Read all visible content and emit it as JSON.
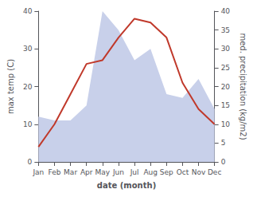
{
  "chart_data": {
    "type": "line",
    "categories": [
      "Jan",
      "Feb",
      "Mar",
      "Apr",
      "May",
      "Jun",
      "Jul",
      "Aug",
      "Sep",
      "Oct",
      "Nov",
      "Dec"
    ],
    "xlabel": "date (month)",
    "ylabel": "max temp (C)",
    "y2label": "med. precipitation (kg/m2)",
    "series": [
      {
        "type": "area",
        "axis": "y2",
        "color": "#c8d0ea",
        "values": [
          12,
          11,
          11,
          15,
          40,
          35,
          27,
          30,
          18,
          17,
          22,
          14
        ]
      },
      {
        "type": "line",
        "color": "#c0392b",
        "values": [
          4,
          10,
          18,
          26,
          27,
          33,
          38,
          37,
          33,
          21,
          14,
          10
        ]
      }
    ],
    "ylim": [
      0,
      40
    ],
    "yticks": [
      0,
      10,
      20,
      30,
      40
    ],
    "y2lim": [
      0,
      40
    ],
    "y2ticks": [
      0,
      5,
      10,
      15,
      20,
      25,
      30,
      35,
      40
    ],
    "grid": false
  }
}
